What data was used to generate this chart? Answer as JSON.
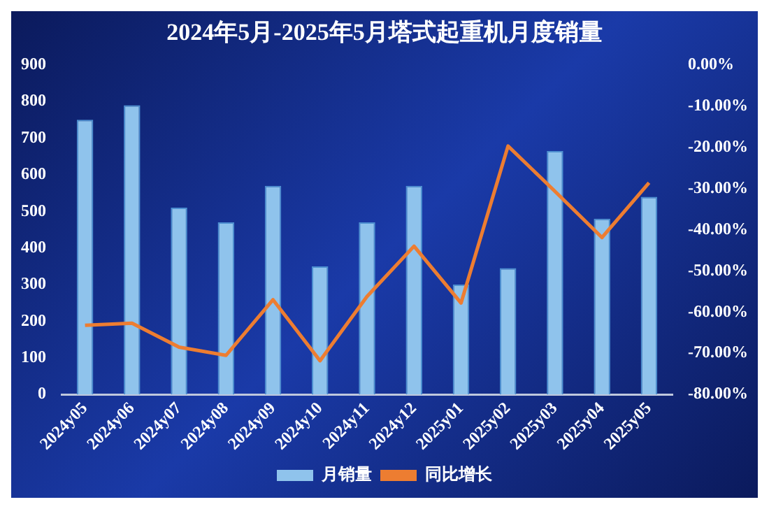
{
  "chart_data": {
    "type": "bar",
    "title": "2024年5月-2025年5月塔式起重机月度销量",
    "categories": [
      "2024y05",
      "2024y06",
      "2024y07",
      "2024y08",
      "2024y09",
      "2024y10",
      "2024y11",
      "2024y12",
      "2025y01",
      "2025y02",
      "2025y03",
      "2025y04",
      "2025y05"
    ],
    "series": [
      {
        "name": "月销量",
        "color": "#8fc3ec",
        "values": [
          750,
          790,
          510,
          470,
          570,
          350,
          470,
          570,
          300,
          345,
          665,
          480,
          540
        ]
      },
      {
        "name": "同比增长",
        "type": "line",
        "axis": "y2",
        "color": "#ed7d31",
        "values": [
          -63.2,
          -62.7,
          -68.5,
          -70.5,
          -57.0,
          -71.8,
          -56.2,
          -44.0,
          -57.8,
          -19.7,
          -30.7,
          -41.9,
          -28.6
        ]
      }
    ],
    "ylim": [
      0,
      900
    ],
    "yticks": [
      0,
      100,
      200,
      300,
      400,
      500,
      600,
      700,
      800,
      900
    ],
    "y2lim": [
      -80,
      0
    ],
    "y2ticks": [
      {
        "value": 0,
        "label": "0.00%"
      },
      {
        "value": -10,
        "label": "-10.00%"
      },
      {
        "value": -20,
        "label": "-20.00%"
      },
      {
        "value": -30,
        "label": "-30.00%"
      },
      {
        "value": -40,
        "label": "-40.00%"
      },
      {
        "value": -50,
        "label": "-50.00%"
      },
      {
        "value": -60,
        "label": "-60.00%"
      },
      {
        "value": -70,
        "label": "-70.00%"
      },
      {
        "value": -80,
        "label": "-80.00%"
      }
    ],
    "grid": false,
    "legend": "bottom",
    "marker": "none"
  }
}
